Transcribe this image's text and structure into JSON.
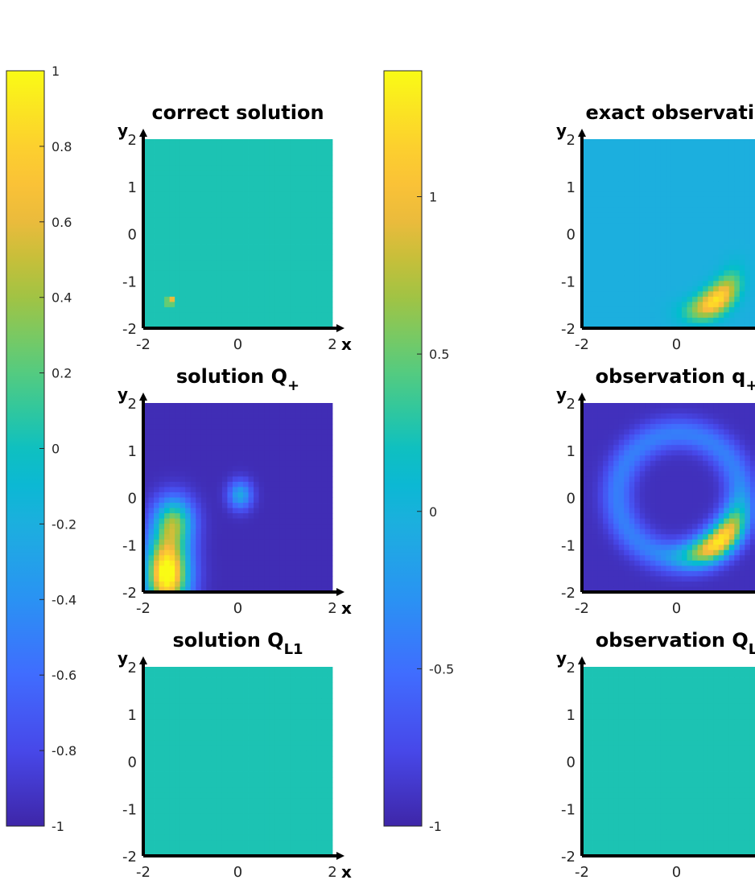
{
  "chart_data": [
    {
      "type": "heatmap",
      "title": "correct solution",
      "title_sub": "",
      "xlabel": "x",
      "ylabel": "y",
      "xlim": [
        -2,
        2
      ],
      "ylim": [
        -2,
        2
      ],
      "xticks": [
        "-2",
        "0",
        "2"
      ],
      "yticks": [
        "2",
        "1",
        "0",
        "-1",
        "-2"
      ],
      "field": "correct_solution",
      "colorbar": "left"
    },
    {
      "type": "heatmap",
      "title": "exact observatio",
      "title_sub": "",
      "xlabel": "",
      "ylabel": "y",
      "xlim": [
        -2,
        2
      ],
      "ylim": [
        -2,
        2
      ],
      "xticks": [
        "-2",
        "0"
      ],
      "yticks": [
        "2",
        "1",
        "0",
        "-1",
        "-2"
      ],
      "field": "exact_observation",
      "colorbar": "right"
    },
    {
      "type": "heatmap",
      "title": "solution Q",
      "title_sub": "+",
      "xlabel": "x",
      "ylabel": "y",
      "xlim": [
        -2,
        2
      ],
      "ylim": [
        -2,
        2
      ],
      "xticks": [
        "-2",
        "0",
        "2"
      ],
      "yticks": [
        "2",
        "1",
        "0",
        "-1",
        "-2"
      ],
      "field": "solution_qplus",
      "colorbar": "left"
    },
    {
      "type": "heatmap",
      "title": "observation q",
      "title_sub": "+",
      "xlabel": "",
      "ylabel": "y",
      "xlim": [
        -2,
        2
      ],
      "ylim": [
        -2,
        2
      ],
      "xticks": [
        "-2",
        "0"
      ],
      "yticks": [
        "2",
        "1",
        "0",
        "-1",
        "-2"
      ],
      "field": "observation_qplus",
      "colorbar": "right"
    },
    {
      "type": "heatmap",
      "title": "solution Q",
      "title_sub": "L1",
      "xlabel": "x",
      "ylabel": "y",
      "xlim": [
        -2,
        2
      ],
      "ylim": [
        -2,
        2
      ],
      "xticks": [
        "-2",
        "0",
        "2"
      ],
      "yticks": [
        "2",
        "1",
        "0",
        "-1",
        "-2"
      ],
      "field": "constant_zero",
      "colorbar": "left"
    },
    {
      "type": "heatmap",
      "title": "observation Q",
      "title_sub": "L",
      "xlabel": "",
      "ylabel": "y",
      "xlim": [
        -2,
        2
      ],
      "ylim": [
        -2,
        2
      ],
      "xticks": [
        "-2",
        "0"
      ],
      "yticks": [
        "2",
        "1",
        "0",
        "-1",
        "-2"
      ],
      "field": "constant_zero",
      "colorbar": "right"
    }
  ],
  "colorbars": {
    "left": {
      "range": [
        -1,
        1
      ],
      "ticks": [
        "1",
        "0.8",
        "0.6",
        "0.4",
        "0.2",
        "0",
        "-0.2",
        "-0.4",
        "-0.6",
        "-0.8",
        "-1"
      ]
    },
    "right": {
      "range": [
        -1,
        1.4
      ],
      "ticks": [
        "1",
        "0.5",
        "0",
        "-0.5",
        "-1"
      ]
    }
  },
  "colormap": "parula",
  "colors": {
    "axes": "#000000",
    "text": "#262626"
  }
}
